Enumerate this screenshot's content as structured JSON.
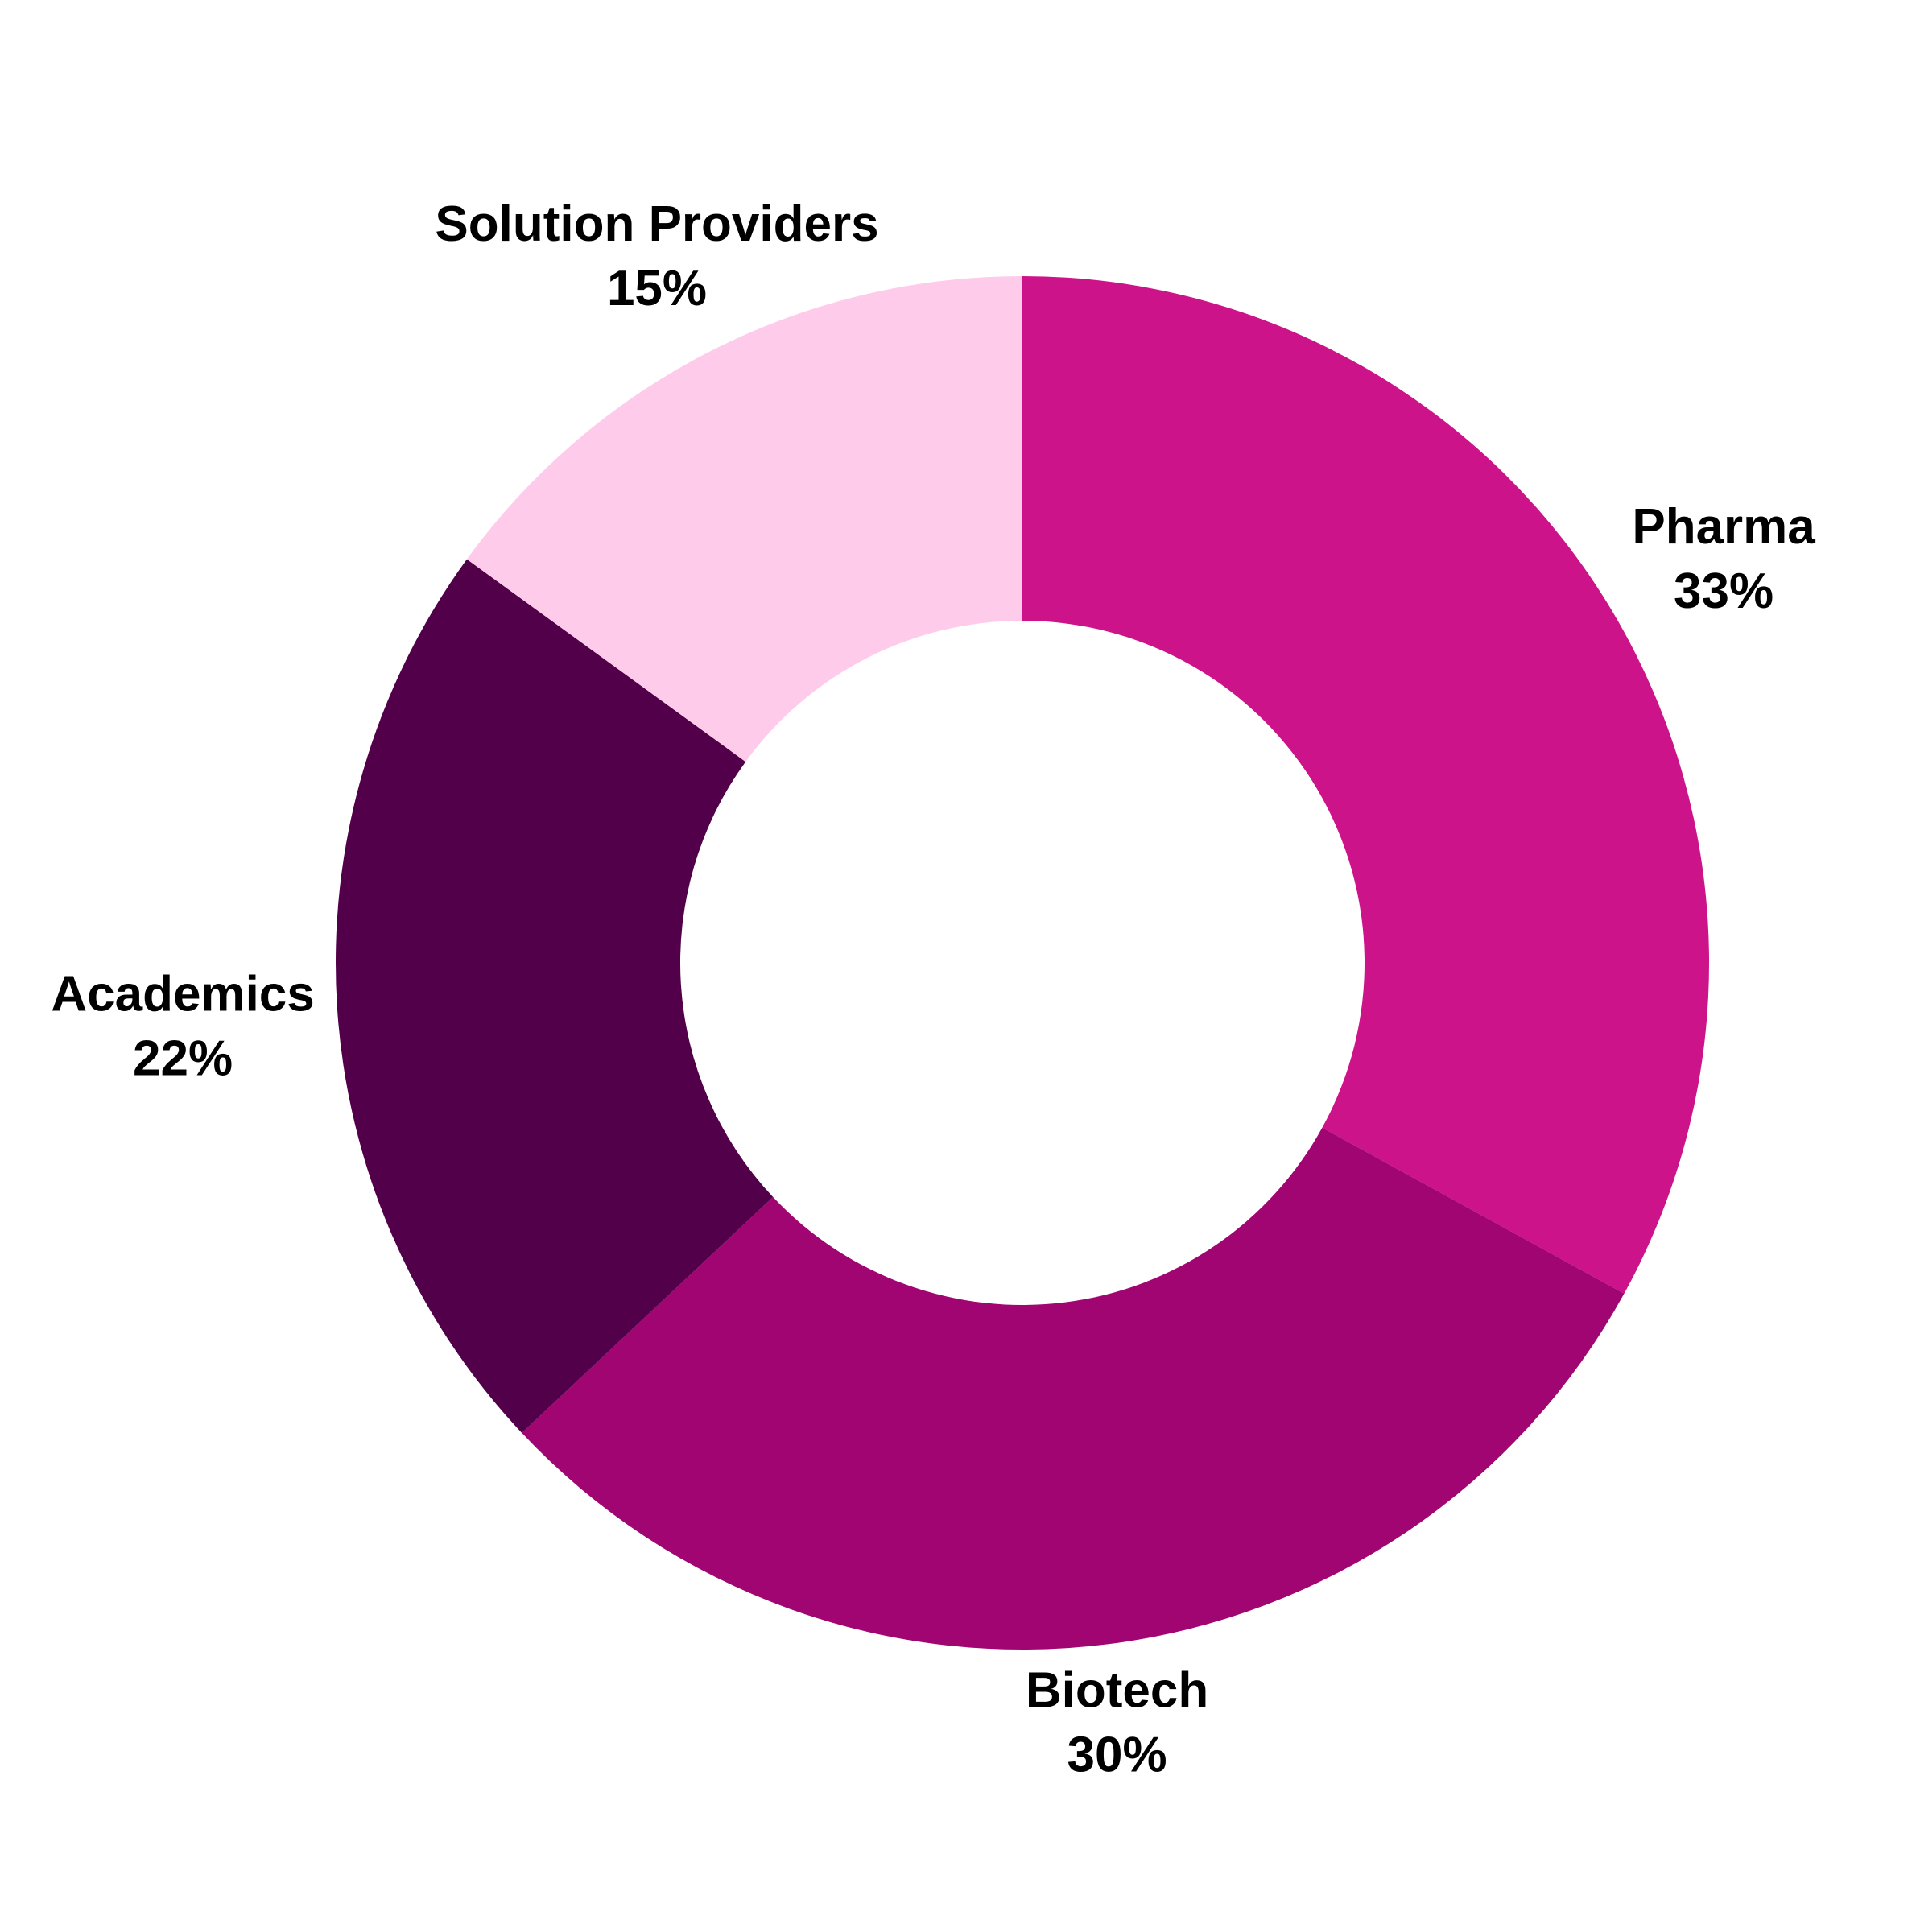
{
  "chart_data": {
    "type": "pie",
    "variant": "donut",
    "start": "12 o'clock",
    "direction": "clockwise",
    "slices": [
      {
        "label": "Pharma",
        "value": 33,
        "value_label": "33%",
        "color": "#cc138a"
      },
      {
        "label": "Biotech",
        "value": 30,
        "value_label": "30%",
        "color": "#a00572"
      },
      {
        "label": "Academics",
        "value": 22,
        "value_label": "22%",
        "color": "#53004a"
      },
      {
        "label": "Solution Providers",
        "value": 15,
        "value_label": "15%",
        "color": "#ffcbea"
      }
    ]
  }
}
